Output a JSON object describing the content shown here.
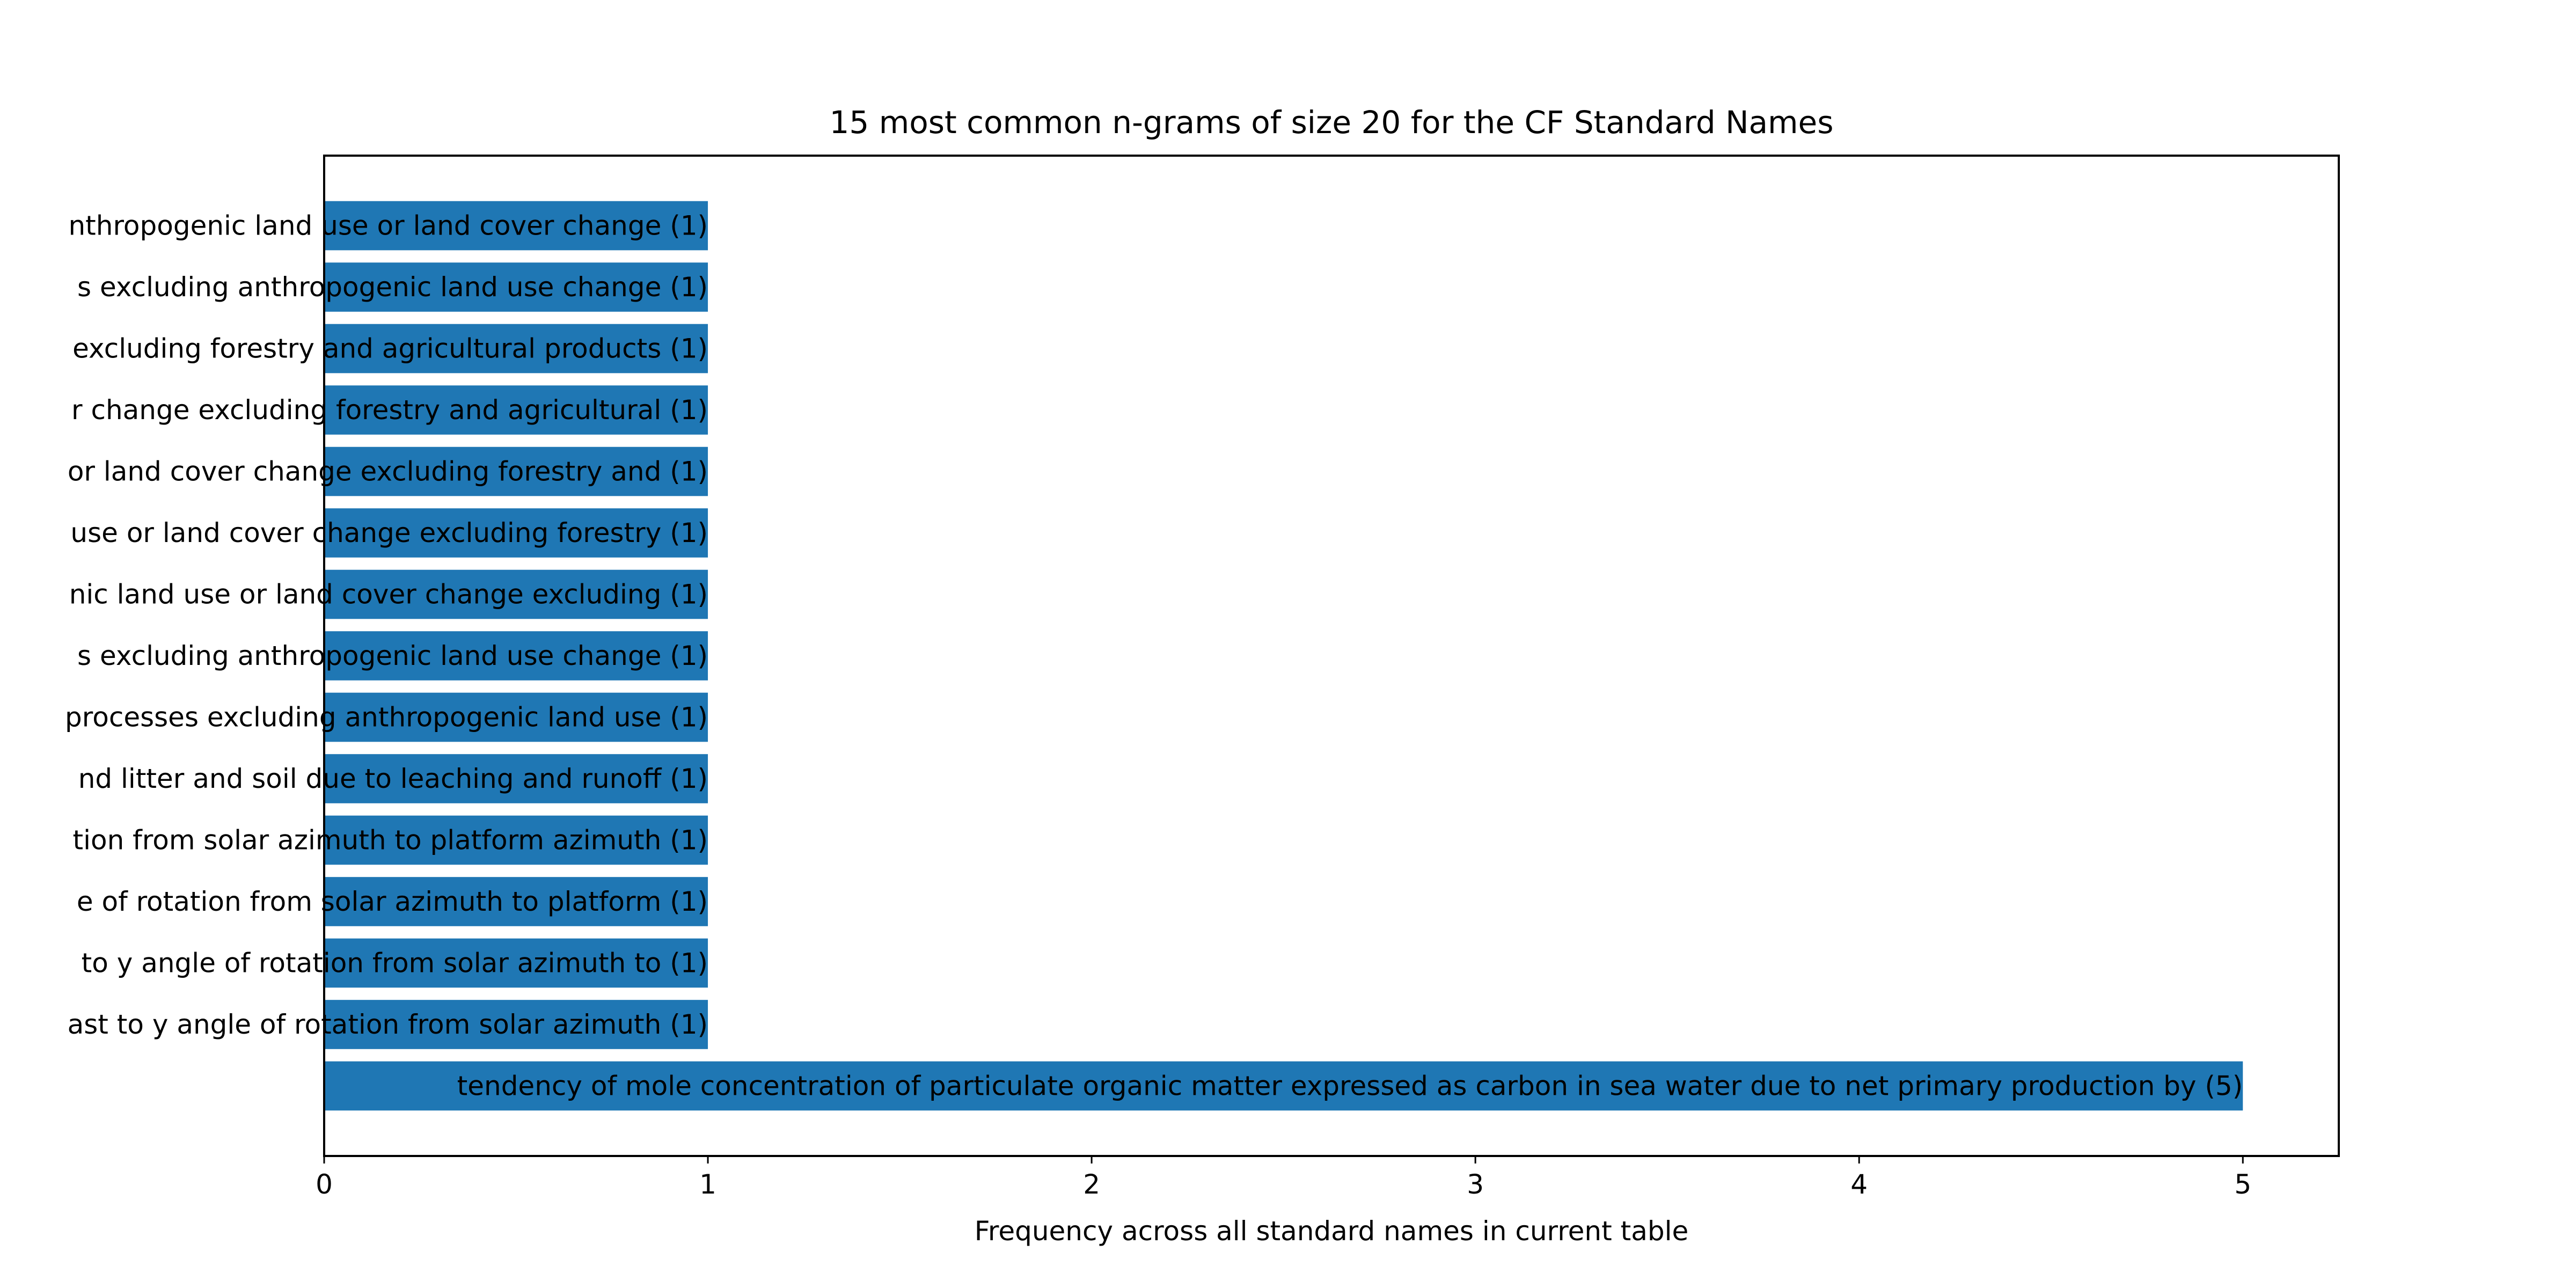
{
  "chart_data": {
    "type": "bar",
    "orientation": "horizontal",
    "title": "15 most common n-grams of size 20 for the CF Standard Names",
    "xlabel": "Frequency across all standard names in current table",
    "ylabel": "",
    "xlim": [
      0,
      5.25
    ],
    "xticks": [
      "0",
      "1",
      "2",
      "3",
      "4",
      "5"
    ],
    "grid": false,
    "bar_color": "#1f77b4",
    "categories": [
      "tendency of mole concentration of particulate organic matter expressed as carbon in sea water due to net primary production by (5)",
      "ast to y angle of rotation from solar azimuth (1)",
      "to y angle of rotation from solar azimuth to (1)",
      "e of rotation from solar azimuth to platform (1)",
      "tion from solar azimuth to platform azimuth (1)",
      "nd litter and soil due to leaching and runoff (1)",
      "processes excluding anthropogenic land use (1)",
      "s excluding anthropogenic land use change (1)",
      "nic land use or land cover change excluding (1)",
      "use or land cover change excluding forestry (1)",
      "or land cover change excluding forestry and (1)",
      "r change excluding forestry and agricultural (1)",
      "excluding forestry and agricultural products (1)",
      "s excluding anthropogenic land use change (1)",
      "nthropogenic land use or land cover change (1)"
    ],
    "values": [
      5,
      1,
      1,
      1,
      1,
      1,
      1,
      1,
      1,
      1,
      1,
      1,
      1,
      1,
      1
    ]
  }
}
